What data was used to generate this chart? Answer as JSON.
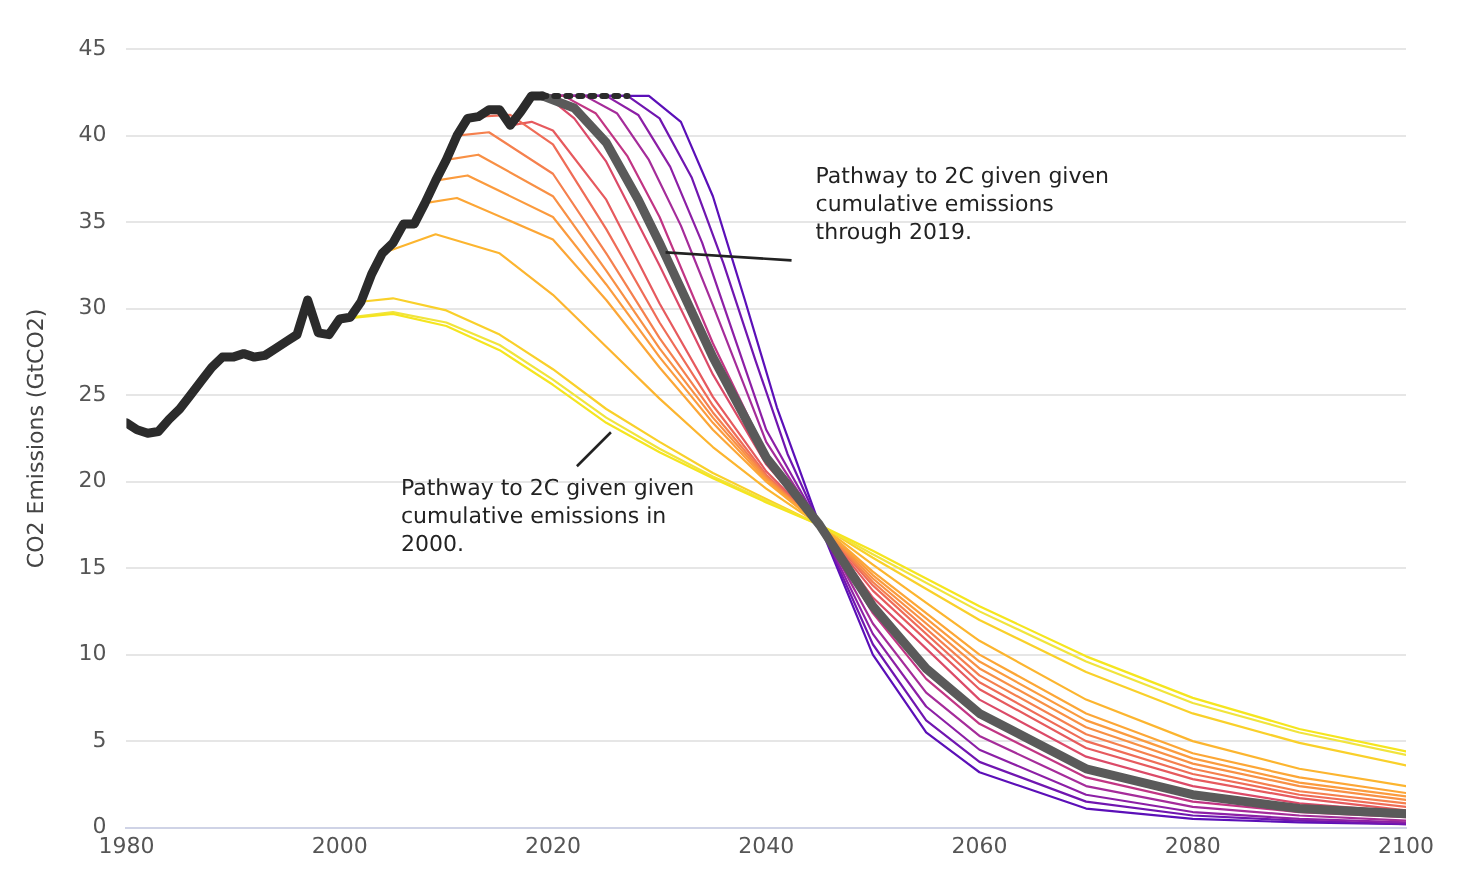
{
  "chart_data": {
    "type": "line",
    "ylabel": "CO2 Emissions (GtCO2)",
    "xlim": [
      1980,
      2100
    ],
    "xticks": [
      1980,
      2000,
      2020,
      2040,
      2060,
      2080,
      2100
    ],
    "ylim": [
      0,
      45
    ],
    "yticks": [
      0,
      5,
      10,
      15,
      20,
      25,
      30,
      35,
      40,
      45
    ],
    "grid": "y",
    "legend": false,
    "marker": "none",
    "annotations": [
      {
        "text": "Pathway to 2C given given cumulative emissions through 2019.",
        "x": 2030,
        "y": 33.6
      },
      {
        "text": "Pathway to 2C given given cumulative emissions in 2000.",
        "x": 2026,
        "y": 23.2
      }
    ],
    "series": [
      {
        "color": "#2b2b2b",
        "x": [
          1980,
          1981,
          1982,
          1983,
          1984,
          1985,
          1986,
          1987,
          1988,
          1989,
          1990,
          1991,
          1992,
          1993,
          1994,
          1995,
          1996,
          1997,
          1998,
          1999,
          2000,
          2001,
          2002,
          2003,
          2004,
          2005,
          2006,
          2007,
          2008,
          2009,
          2010,
          2011,
          2012,
          2013,
          2014,
          2015,
          2016,
          2017,
          2018,
          2019
        ],
        "values": [
          23.4,
          23.0,
          22.8,
          22.9,
          23.6,
          24.2,
          25.0,
          25.8,
          26.6,
          27.2,
          27.2,
          27.4,
          27.2,
          27.3,
          27.7,
          28.1,
          28.5,
          30.5,
          28.6,
          28.5,
          29.4,
          29.5,
          30.4,
          32.0,
          33.2,
          33.8,
          34.9,
          34.9,
          36.1,
          37.4,
          38.6,
          40.0,
          41.0,
          41.1,
          41.5,
          41.5,
          40.6,
          41.4,
          42.3,
          42.3
        ]
      },
      {
        "color": "#2b2b2b",
        "line_style": "dotted",
        "x": [
          2019,
          2027
        ],
        "values": [
          42.3,
          42.3
        ]
      },
      {
        "color": "#5a5a5a",
        "x": [
          2019,
          2022,
          2025,
          2028,
          2030,
          2035,
          2040,
          2045,
          2050,
          2055,
          2060,
          2070,
          2080,
          2090,
          2100
        ],
        "values": [
          42.3,
          41.6,
          39.6,
          36.3,
          33.8,
          27.2,
          21.4,
          17.5,
          12.8,
          9.2,
          6.6,
          3.4,
          1.9,
          1.1,
          0.8
        ]
      },
      {
        "color": "#f5e51f",
        "x": [
          2000,
          2005,
          2010,
          2015,
          2020,
          2025,
          2030,
          2035,
          2040,
          2045,
          2050,
          2060,
          2070,
          2080,
          2090,
          2100
        ],
        "values": [
          29.4,
          29.7,
          29.0,
          27.6,
          25.6,
          23.4,
          21.7,
          20.2,
          18.8,
          17.5,
          16.0,
          12.8,
          9.9,
          7.5,
          5.7,
          4.4
        ]
      },
      {
        "color": "#f1e43c",
        "x": [
          2001,
          2005,
          2010,
          2015,
          2020,
          2025,
          2030,
          2035,
          2040,
          2045,
          2050,
          2060,
          2070,
          2080,
          2090,
          2100
        ],
        "values": [
          29.5,
          29.8,
          29.2,
          27.9,
          25.9,
          23.7,
          21.9,
          20.3,
          18.9,
          17.5,
          15.8,
          12.5,
          9.6,
          7.2,
          5.5,
          4.2
        ]
      },
      {
        "color": "#f9d02a",
        "x": [
          2002,
          2005,
          2010,
          2015,
          2020,
          2025,
          2030,
          2035,
          2040,
          2045,
          2050,
          2060,
          2070,
          2080,
          2090,
          2100
        ],
        "values": [
          30.4,
          30.6,
          29.9,
          28.5,
          26.5,
          24.2,
          22.3,
          20.5,
          19.0,
          17.5,
          15.6,
          12.0,
          9.0,
          6.6,
          4.9,
          3.6
        ]
      },
      {
        "color": "#fcb52f",
        "x": [
          2004,
          2009,
          2015,
          2020,
          2025,
          2030,
          2035,
          2040,
          2045,
          2050,
          2060,
          2070,
          2080,
          2090,
          2100
        ],
        "values": [
          33.2,
          34.3,
          33.2,
          30.8,
          27.8,
          24.8,
          22.0,
          19.6,
          17.5,
          15.2,
          10.8,
          7.4,
          5.0,
          3.4,
          2.4
        ]
      },
      {
        "color": "#fca636",
        "x": [
          2008,
          2011,
          2020,
          2025,
          2030,
          2035,
          2040,
          2045,
          2050,
          2060,
          2070,
          2080,
          2090,
          2100
        ],
        "values": [
          36.1,
          36.4,
          34.0,
          30.5,
          26.6,
          23.0,
          20.0,
          17.5,
          14.8,
          10.0,
          6.6,
          4.3,
          2.9,
          2.0
        ]
      },
      {
        "color": "#fb9b3e",
        "x": [
          2009,
          2012,
          2020,
          2025,
          2030,
          2035,
          2040,
          2045,
          2050,
          2060,
          2070,
          2080,
          2090,
          2100
        ],
        "values": [
          37.4,
          37.7,
          35.3,
          31.4,
          27.2,
          23.4,
          20.1,
          17.5,
          14.6,
          9.6,
          6.2,
          4.0,
          2.6,
          1.8
        ]
      },
      {
        "color": "#f89045",
        "x": [
          2010,
          2013,
          2020,
          2025,
          2030,
          2035,
          2040,
          2045,
          2050,
          2060,
          2070,
          2080,
          2090,
          2100
        ],
        "values": [
          38.6,
          38.9,
          36.5,
          32.2,
          27.7,
          23.7,
          20.2,
          17.5,
          14.4,
          9.2,
          5.8,
          3.7,
          2.4,
          1.6
        ]
      },
      {
        "color": "#f5804e",
        "x": [
          2011,
          2014,
          2020,
          2025,
          2030,
          2035,
          2040,
          2045,
          2050,
          2060,
          2070,
          2080,
          2090,
          2100
        ],
        "values": [
          40.0,
          40.2,
          37.8,
          33.2,
          28.3,
          24.0,
          20.3,
          17.5,
          14.2,
          8.8,
          5.4,
          3.4,
          2.1,
          1.4
        ]
      },
      {
        "color": "#ef6c57",
        "x": [
          2013,
          2016,
          2020,
          2025,
          2030,
          2035,
          2040,
          2045,
          2050,
          2060,
          2070,
          2080,
          2090,
          2100
        ],
        "values": [
          41.1,
          41.2,
          39.5,
          34.6,
          29.2,
          24.4,
          20.4,
          17.5,
          14.0,
          8.4,
          5.0,
          3.1,
          1.9,
          1.2
        ]
      },
      {
        "color": "#e65a5e",
        "x": [
          2016,
          2018,
          2020,
          2025,
          2030,
          2035,
          2040,
          2045,
          2050,
          2060,
          2070,
          2080,
          2090,
          2100
        ],
        "values": [
          40.6,
          40.8,
          40.3,
          36.3,
          30.3,
          24.9,
          20.6,
          17.5,
          13.7,
          8.0,
          4.6,
          2.8,
          1.7,
          1.0
        ]
      },
      {
        "color": "#db4a68",
        "x": [
          2018,
          2020,
          2022,
          2025,
          2030,
          2035,
          2040,
          2045,
          2050,
          2060,
          2070,
          2080,
          2090,
          2100
        ],
        "values": [
          42.3,
          42.0,
          41.0,
          38.5,
          32.5,
          26.2,
          21.0,
          17.5,
          13.3,
          7.4,
          4.1,
          2.4,
          1.4,
          0.9
        ]
      },
      {
        "color": "#c13584",
        "x": [
          2019,
          2021,
          2024,
          2027,
          2030,
          2035,
          2040,
          2045,
          2050,
          2055,
          2060,
          2070,
          2080,
          2090,
          2100
        ],
        "values": [
          42.3,
          42.3,
          41.3,
          38.8,
          35.3,
          28.0,
          21.6,
          17.5,
          12.4,
          8.6,
          6.0,
          2.9,
          1.5,
          0.9,
          0.6
        ]
      },
      {
        "color": "#a52c9a",
        "x": [
          2019,
          2023,
          2026,
          2029,
          2032,
          2035,
          2040,
          2045,
          2050,
          2055,
          2060,
          2070,
          2080,
          2090,
          2100
        ],
        "values": [
          42.3,
          42.3,
          41.3,
          38.6,
          34.8,
          30.2,
          22.3,
          17.5,
          11.8,
          7.8,
          5.3,
          2.4,
          1.2,
          0.7,
          0.4
        ]
      },
      {
        "color": "#8c1fa6",
        "x": [
          2019,
          2025,
          2028,
          2031,
          2034,
          2037,
          2040,
          2045,
          2050,
          2055,
          2060,
          2070,
          2080,
          2090,
          2100
        ],
        "values": [
          42.3,
          42.3,
          41.2,
          38.2,
          33.8,
          28.4,
          23.0,
          17.5,
          11.2,
          7.0,
          4.5,
          1.9,
          0.9,
          0.5,
          0.3
        ]
      },
      {
        "color": "#7016b0",
        "x": [
          2019,
          2027,
          2030,
          2033,
          2036,
          2039,
          2042,
          2045,
          2050,
          2055,
          2060,
          2070,
          2080,
          2090,
          2100
        ],
        "values": [
          42.3,
          42.3,
          41.0,
          37.6,
          32.6,
          27.0,
          21.6,
          17.5,
          10.6,
          6.2,
          3.8,
          1.5,
          0.7,
          0.4,
          0.2
        ]
      },
      {
        "color": "#5b0fb8",
        "x": [
          2019,
          2029,
          2032,
          2035,
          2038,
          2041,
          2045,
          2050,
          2055,
          2060,
          2070,
          2080,
          2090,
          2100
        ],
        "values": [
          42.3,
          42.3,
          40.8,
          36.5,
          30.5,
          24.3,
          17.5,
          10.0,
          5.5,
          3.2,
          1.1,
          0.5,
          0.3,
          0.2
        ]
      }
    ]
  }
}
